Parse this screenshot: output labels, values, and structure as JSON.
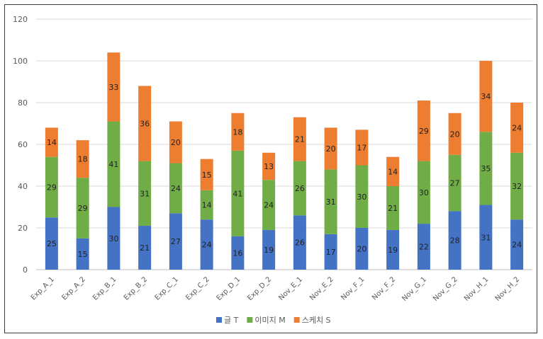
{
  "chart_data": {
    "type": "bar",
    "stacked": true,
    "title": "",
    "xlabel": "",
    "ylabel": "",
    "ylim": [
      0,
      120
    ],
    "yticks": [
      0,
      20,
      40,
      60,
      80,
      100,
      120
    ],
    "grid": true,
    "legend_position": "bottom",
    "categories": [
      "Exp_A_1",
      "Exp_A_2",
      "Exp_B_1",
      "Exp_B_2",
      "Exp_C_1",
      "Exp_C_2",
      "Exp_D_1",
      "Exp_D_2",
      "Nov_E_1",
      "Nov_E_2",
      "Nov_F_1",
      "Nov_F_2",
      "Nov_G_1",
      "Nov_G_2",
      "Nov_H_1",
      "Nov_H_2"
    ],
    "series": [
      {
        "name": "글 T",
        "color": "#4472C4",
        "values": [
          25,
          15,
          30,
          21,
          27,
          24,
          16,
          19,
          26,
          17,
          20,
          19,
          22,
          28,
          31,
          24
        ]
      },
      {
        "name": "이미지 M",
        "color": "#70AD47",
        "values": [
          29,
          29,
          41,
          31,
          24,
          14,
          41,
          24,
          26,
          31,
          30,
          21,
          30,
          27,
          35,
          32
        ]
      },
      {
        "name": "스케치 S",
        "color": "#ED7D31",
        "values": [
          14,
          18,
          33,
          36,
          20,
          15,
          18,
          13,
          21,
          20,
          17,
          14,
          29,
          20,
          34,
          24
        ]
      }
    ]
  }
}
